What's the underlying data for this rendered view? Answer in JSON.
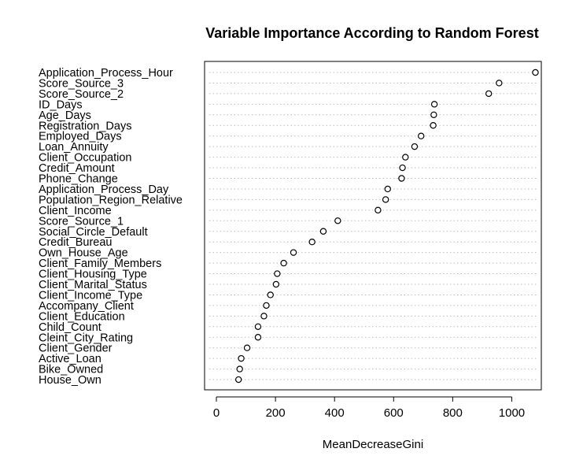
{
  "chart_data": {
    "type": "scatter",
    "title": "Variable Importance According to Random Forest",
    "xlabel": "MeanDecreaseGini",
    "ylabel": "",
    "xlim": [
      -40,
      1100
    ],
    "x_ticks": [
      "0",
      "200",
      "400",
      "600",
      "800",
      "1000"
    ],
    "x_tick_values": [
      0,
      200,
      400,
      600,
      800,
      1000
    ],
    "grid": "dotted horizontal lines",
    "point_style": "open circle",
    "categories": [
      "Application_Process_Hour",
      "Score_Source_3",
      "Score_Source_2",
      "ID_Days",
      "Age_Days",
      "Registration_Days",
      "Employed_Days",
      "Loan_Annuity",
      "Client_Occupation",
      "Credit_Amount",
      "Phone_Change",
      "Application_Process_Day",
      "Population_Region_Relative",
      "Client_Income",
      "Score_Source_1",
      "Social_Circle_Default",
      "Credit_Bureau",
      "Own_House_Age",
      "Client_Family_Members",
      "Client_Housing_Type",
      "Client_Marital_Status",
      "Client_Income_Type",
      "Accompany_Client",
      "Client_Education",
      "Child_Count",
      "Cleint_City_Rating",
      "Client_Gender",
      "Active_Loan",
      "Bike_Owned",
      "House_Own"
    ],
    "values": [
      1080,
      957,
      922,
      738,
      736,
      734,
      693,
      671,
      640,
      630,
      627,
      580,
      573,
      547,
      411,
      362,
      324,
      261,
      228,
      206,
      202,
      183,
      169,
      161,
      141,
      141,
      104,
      84,
      79,
      75
    ]
  }
}
